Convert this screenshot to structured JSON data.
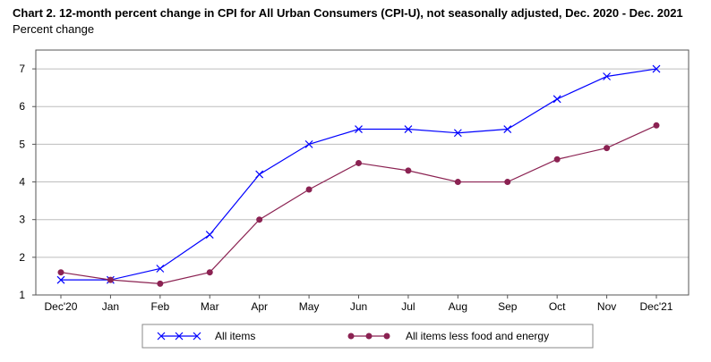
{
  "chart_data": {
    "type": "line",
    "title": "Chart 2. 12-month percent change in CPI for All Urban Consumers (CPI-U), not seasonally adjusted, Dec. 2020 - Dec. 2021",
    "ylabel": "Percent change",
    "xlabel": "",
    "categories": [
      "Dec'20",
      "Jan",
      "Feb",
      "Mar",
      "Apr",
      "May",
      "Jun",
      "Jul",
      "Aug",
      "Sep",
      "Oct",
      "Nov",
      "Dec'21"
    ],
    "ylim": [
      1,
      7.5
    ],
    "yticks": [
      1,
      2,
      3,
      4,
      5,
      6,
      7
    ],
    "grid": true,
    "legend_position": "bottom",
    "series": [
      {
        "name": "All items",
        "color": "#0000ff",
        "marker": "x-cross",
        "values": [
          1.4,
          1.4,
          1.7,
          2.6,
          4.2,
          5.0,
          5.4,
          5.4,
          5.3,
          5.4,
          6.2,
          6.8,
          7.0
        ]
      },
      {
        "name": "All items less food and energy",
        "color": "#8b2252",
        "marker": "circle",
        "values": [
          1.6,
          1.4,
          1.3,
          1.6,
          3.0,
          3.8,
          4.5,
          4.3,
          4.0,
          4.0,
          4.6,
          4.9,
          5.5
        ]
      }
    ]
  }
}
